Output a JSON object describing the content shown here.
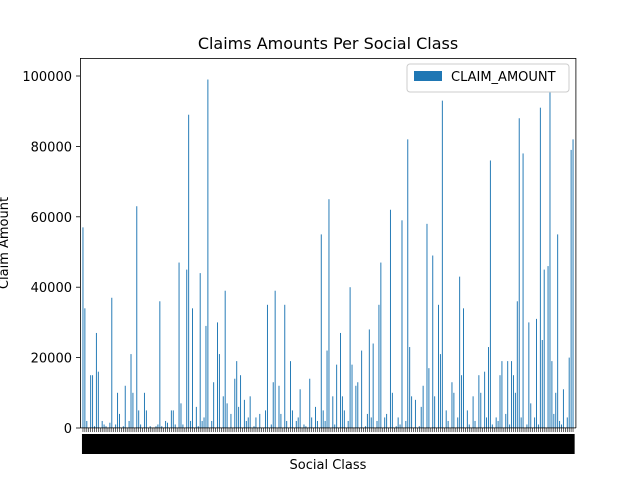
{
  "chart_data": {
    "type": "bar",
    "title": "Claims Amounts Per Social Class",
    "xlabel": "Social Class",
    "ylabel": "Claim Amount",
    "ylim": [
      0,
      105000
    ],
    "yticks": [
      0,
      20000,
      40000,
      60000,
      80000,
      100000
    ],
    "grid": false,
    "legend": {
      "placement": "top-right"
    },
    "colors": {
      "bar": "#1f77b4"
    },
    "series": [
      {
        "name": "CLAIM_AMOUNT",
        "values": [
          57000,
          34000,
          2000,
          0,
          15000,
          15000,
          500,
          27000,
          16000,
          0,
          2000,
          1000,
          500,
          0,
          1500,
          37000,
          0,
          1000,
          10000,
          4000,
          0,
          500,
          12000,
          0,
          2000,
          21000,
          10000,
          0,
          63000,
          5000,
          1000,
          0,
          10000,
          5000,
          0,
          500,
          0,
          0,
          500,
          1000,
          36000,
          500,
          0,
          2000,
          1500,
          0,
          5000,
          5000,
          1000,
          0,
          47000,
          7000,
          1000,
          0,
          45000,
          89000,
          2000,
          34000,
          0,
          6000,
          500,
          44000,
          2000,
          3000,
          29000,
          99000,
          0,
          2000,
          13000,
          0,
          30000,
          21000,
          0,
          9000,
          39000,
          7000,
          0,
          4000,
          0,
          14000,
          19000,
          6000,
          15000,
          0,
          8000,
          2000,
          3000,
          9000,
          0,
          500,
          3000,
          0,
          4000,
          0,
          0,
          5000,
          35000,
          0,
          1000,
          13000,
          39000,
          0,
          12000,
          4000,
          0,
          35000,
          2000,
          0,
          19000,
          5000,
          0,
          2000,
          3000,
          11000,
          0,
          1000,
          500,
          0,
          14000,
          3000,
          0,
          6000,
          2000,
          0,
          55000,
          5000,
          2000,
          22000,
          65000,
          0,
          9000,
          1000,
          18000,
          0,
          27000,
          9000,
          5000,
          0,
          2000,
          40000,
          18000,
          0,
          12000,
          13000,
          0,
          22000,
          0,
          500,
          4000,
          28000,
          3000,
          24000,
          0,
          2000,
          35000,
          47000,
          0,
          3000,
          4000,
          0,
          62000,
          10000,
          0,
          500,
          3000,
          1000,
          59000,
          0,
          2000,
          82000,
          23000,
          9000,
          0,
          8000,
          0,
          500,
          6000,
          12000,
          0,
          58000,
          17000,
          0,
          49000,
          9000,
          0,
          35000,
          21000,
          93000,
          0,
          5000,
          2000,
          0,
          13000,
          10000,
          0,
          3000,
          43000,
          15000,
          34000,
          0,
          5000,
          1000,
          0,
          9000,
          2000,
          0,
          15000,
          10000,
          0,
          16000,
          3000,
          23000,
          76000,
          1000,
          0,
          3000,
          2000,
          15000,
          19000,
          0,
          4000,
          19000,
          1000,
          19000,
          15000,
          10000,
          36000,
          88000,
          3000,
          78000,
          0,
          1000,
          30000,
          7000,
          0,
          3000,
          31000,
          1000,
          91000,
          25000,
          45000,
          0,
          46000,
          97000,
          19000,
          4000,
          10000,
          55000,
          2000,
          1000,
          11000,
          0,
          3000,
          20000,
          79000,
          82000
        ]
      }
    ],
    "categories_note_hidden": false
  }
}
